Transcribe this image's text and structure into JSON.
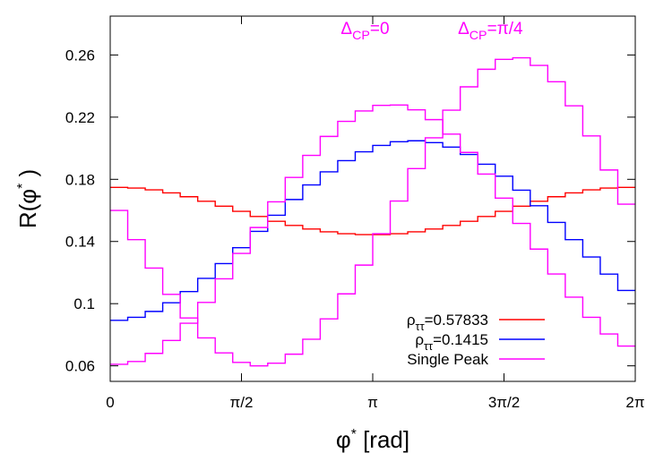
{
  "chart_data": {
    "type": "line",
    "title": "",
    "xlabel": {
      "base": "φ",
      "sup": "*",
      "suffix": " [rad]"
    },
    "ylabel": {
      "base": "R(φ",
      "sup": "*",
      "suffix": " )"
    },
    "xlim": [
      0,
      6.2832
    ],
    "ylim": [
      0.05,
      0.285
    ],
    "x_ticks": [
      {
        "value": 0,
        "label": "0"
      },
      {
        "value": 1.5708,
        "label": "π/2"
      },
      {
        "value": 3.1416,
        "label": "π"
      },
      {
        "value": 4.7124,
        "label": "3π/2"
      },
      {
        "value": 6.2832,
        "label": "2π"
      }
    ],
    "y_ticks": [
      {
        "value": 0.06,
        "label": "0.06"
      },
      {
        "value": 0.1,
        "label": "0.1"
      },
      {
        "value": 0.14,
        "label": "0.14"
      },
      {
        "value": 0.18,
        "label": "0.18"
      },
      {
        "value": 0.22,
        "label": "0.22"
      },
      {
        "value": 0.26,
        "label": "0.26"
      }
    ],
    "bins": 30,
    "series": [
      {
        "name": "rho-0.57833",
        "legend": {
          "base": "ρ",
          "sub": "ττ",
          "suffix": "=0.57833"
        },
        "color": "#ff0000",
        "values": [
          0.1748,
          0.1744,
          0.1732,
          0.1713,
          0.1688,
          0.1659,
          0.1627,
          0.1594,
          0.1561,
          0.153,
          0.1503,
          0.148,
          0.1462,
          0.145,
          0.1444,
          0.1444,
          0.145,
          0.1462,
          0.148,
          0.1503,
          0.153,
          0.1561,
          0.1594,
          0.1627,
          0.1659,
          0.1688,
          0.1713,
          0.1732,
          0.1744,
          0.1748
        ]
      },
      {
        "name": "rho-0.1415",
        "legend": {
          "base": "ρ",
          "sub": "ττ",
          "suffix": "=0.1415"
        },
        "color": "#0000ff",
        "values": [
          0.0893,
          0.0912,
          0.095,
          0.1006,
          0.1078,
          0.1163,
          0.1258,
          0.136,
          0.1465,
          0.1569,
          0.167,
          0.1764,
          0.1848,
          0.192,
          0.1977,
          0.2018,
          0.2042,
          0.2048,
          0.2036,
          0.2007,
          0.196,
          0.1897,
          0.182,
          0.173,
          0.163,
          0.1523,
          0.1412,
          0.13,
          0.119,
          0.1085
        ]
      },
      {
        "name": "single-peak-dcp-0",
        "legend": {
          "base": "Single Peak",
          "sub": "",
          "suffix": ""
        },
        "color": "#ff00ff",
        "values": [
          0.061,
          0.0628,
          0.068,
          0.0763,
          0.0874,
          0.1008,
          0.116,
          0.1323,
          0.149,
          0.1655,
          0.1812,
          0.1954,
          0.2076,
          0.2173,
          0.224,
          0.2276,
          0.2278,
          0.2247,
          0.2184,
          0.2091,
          0.1973,
          0.1834,
          0.1679,
          0.1516,
          0.1351,
          0.1191,
          0.1042,
          0.0912,
          0.0805,
          0.0727
        ]
      },
      {
        "name": "single-peak-dcp-pi4",
        "legend": null,
        "color": "#ff00ff",
        "values": [
          0.16,
          0.1412,
          0.1229,
          0.106,
          0.0908,
          0.078,
          0.0683,
          0.0622,
          0.06,
          0.0617,
          0.0675,
          0.0771,
          0.0902,
          0.1063,
          0.1248,
          0.145,
          0.166,
          0.1869,
          0.2067,
          0.2245,
          0.2395,
          0.2508,
          0.2572,
          0.2582,
          0.2533,
          0.2428,
          0.2273,
          0.2079,
          0.186,
          0.164
        ]
      }
    ],
    "annotations": [
      {
        "text_base": "Δ",
        "text_sub": "CP",
        "text_suffix": "=0",
        "x": 3.05,
        "y": 0.2735
      },
      {
        "text_base": "Δ",
        "text_sub": "CP",
        "text_suffix": "=π/4",
        "x": 4.55,
        "y": 0.2735
      }
    ],
    "legend_position": "bottom-right"
  }
}
